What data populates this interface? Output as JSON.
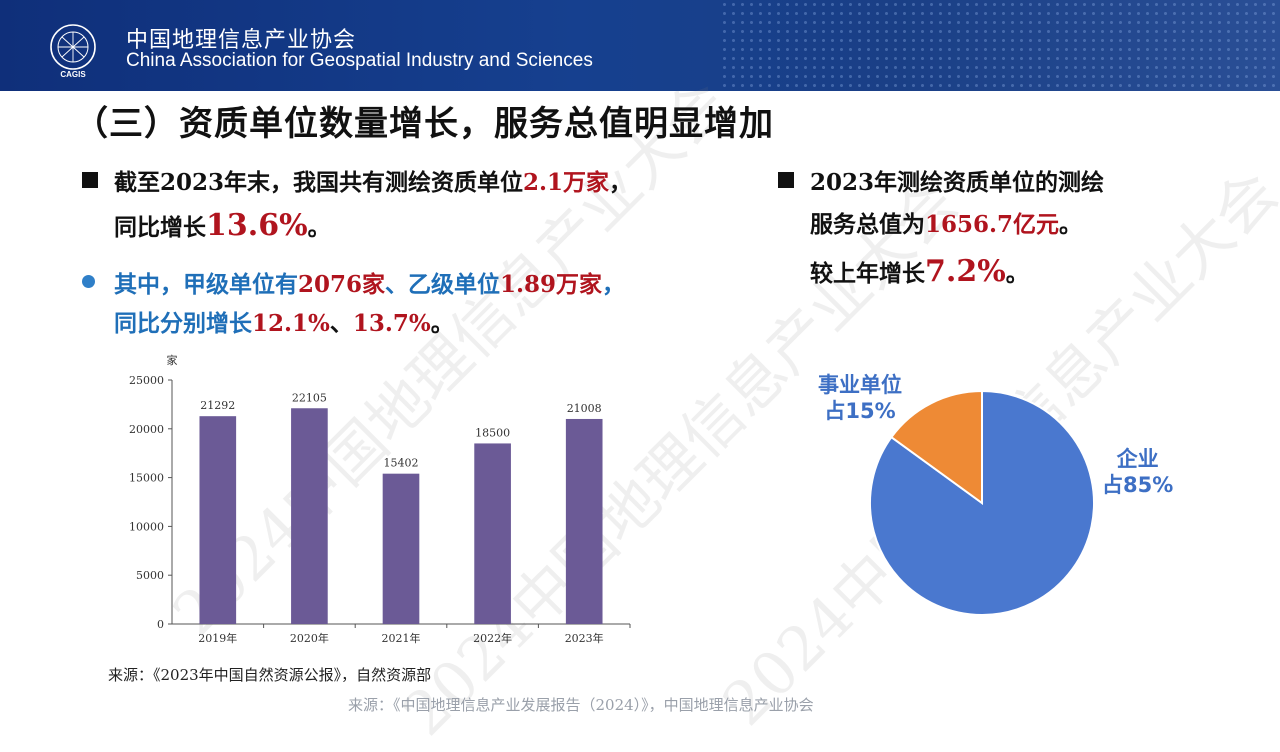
{
  "header": {
    "org_cn": "中国地理信息产业协会",
    "org_en": "China Association for Geospatial Industry and Sciences",
    "logo_text": "CAGIS"
  },
  "title": "（三）资质单位数量增长，服务总值明显增加",
  "left_bullet": {
    "line1_prefix": "截至2023年末，我国共有测绘资质单位",
    "line1_value": "2.1万家",
    "line1_suffix": "，",
    "line2_prefix": "同比增长",
    "line2_value": "13.6%",
    "line2_suffix": "。"
  },
  "left_sub": {
    "line1_a": "其中，甲级单位有",
    "line1_b": "2076家",
    "line1_c": "、乙级单位",
    "line1_d": "1.89万家",
    "line1_e": "，",
    "line2_a": "同比分别增长",
    "line2_b": "12.1%",
    "line2_c": "、",
    "line2_d": "13.7%",
    "line2_e": "。"
  },
  "right_bullet": {
    "line1": "2023年测绘资质单位的测绘",
    "line2_prefix": "服务总值为",
    "line2_value": "1656.7亿元",
    "line2_suffix": "。",
    "line3_prefix": "较上年增长",
    "line3_value": "7.2%",
    "line3_suffix": "。"
  },
  "source_chart": "来源：《2023年中国自然资源公报》，自然资源部",
  "source_page": "来源：《中国地理信息产业发展报告（2024）》，中国地理信息产业协会",
  "watermark": "2024中国地理信息产业大会",
  "colors": {
    "bar": "#6b5a96",
    "pie_enterprise": "#4a78cf",
    "pie_institution": "#ee8a35",
    "highlight": "#b0141e",
    "header": "#16408f"
  },
  "chart_data": [
    {
      "type": "bar",
      "ylabel": "家",
      "categories": [
        "2019年",
        "2020年",
        "2021年",
        "2022年",
        "2023年"
      ],
      "values": [
        21292,
        22105,
        15402,
        18500,
        21008
      ],
      "ylim": [
        0,
        25000
      ],
      "yticks": [
        0,
        5000,
        10000,
        15000,
        20000,
        25000
      ],
      "grid": false
    },
    {
      "type": "pie",
      "slices": [
        {
          "label": "企业",
          "pct_label": "占85%",
          "value": 85
        },
        {
          "label": "事业单位",
          "pct_label": "占15%",
          "value": 15
        }
      ]
    }
  ]
}
